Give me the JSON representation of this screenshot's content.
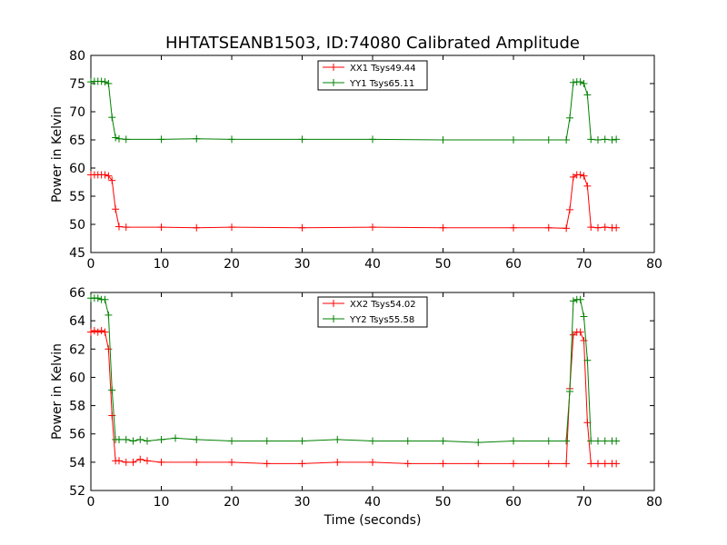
{
  "chart_data": {
    "title": "HHTATSEANB1503, ID:74080 Calibrated Amplitude",
    "xlabel": "Time (seconds)",
    "panels": [
      {
        "type": "line",
        "ylabel": "Power in Kelvin",
        "xlim": [
          0,
          80
        ],
        "ylim": [
          45,
          80
        ],
        "xticks": [
          0,
          10,
          20,
          30,
          40,
          50,
          60,
          70,
          80
        ],
        "yticks": [
          45,
          50,
          55,
          60,
          65,
          70,
          75,
          80
        ],
        "grid": false,
        "legend_position": "top-center",
        "series": [
          {
            "name": "XX1 Tsys49.44",
            "color": "#ff0000",
            "x": [
              0.0,
              0.5,
              1.0,
              1.5,
              2.0,
              2.5,
              3.0,
              3.5,
              4.0,
              5.0,
              10.0,
              15.0,
              20.0,
              30.0,
              40.0,
              50.0,
              60.0,
              65.0,
              67.5,
              68.0,
              68.5,
              69.0,
              69.5,
              70.0,
              70.5,
              71.0,
              72.0,
              73.0,
              74.0,
              74.6
            ],
            "y": [
              58.8,
              58.8,
              58.8,
              58.8,
              58.8,
              58.6,
              57.8,
              52.7,
              49.6,
              49.5,
              49.5,
              49.4,
              49.5,
              49.4,
              49.5,
              49.4,
              49.4,
              49.4,
              49.3,
              52.6,
              58.4,
              58.8,
              58.8,
              58.6,
              56.8,
              49.5,
              49.4,
              49.5,
              49.4,
              49.4
            ]
          },
          {
            "name": "YY1 Tsys65.11",
            "color": "#008000",
            "x": [
              0.0,
              0.5,
              1.0,
              1.5,
              2.0,
              2.5,
              3.0,
              3.5,
              4.0,
              5.0,
              10.0,
              15.0,
              20.0,
              30.0,
              40.0,
              50.0,
              60.0,
              65.0,
              67.5,
              68.0,
              68.5,
              69.0,
              69.5,
              70.0,
              70.5,
              71.0,
              72.0,
              73.0,
              74.0,
              74.6
            ],
            "y": [
              75.3,
              75.4,
              75.4,
              75.4,
              75.3,
              75.0,
              69.0,
              65.4,
              65.2,
              65.1,
              65.1,
              65.2,
              65.1,
              65.1,
              65.1,
              65.0,
              65.0,
              65.0,
              65.0,
              68.9,
              75.2,
              75.3,
              75.3,
              75.0,
              73.0,
              65.1,
              65.0,
              65.1,
              65.0,
              65.1
            ]
          }
        ]
      },
      {
        "type": "line",
        "ylabel": "Power in Kelvin",
        "xlim": [
          0,
          80
        ],
        "ylim": [
          52,
          66
        ],
        "xticks": [
          0,
          10,
          20,
          30,
          40,
          50,
          60,
          70,
          80
        ],
        "yticks": [
          52,
          54,
          56,
          58,
          60,
          62,
          64,
          66
        ],
        "grid": false,
        "legend_position": "top-center",
        "series": [
          {
            "name": "XX2 Tsys54.02",
            "color": "#ff0000",
            "x": [
              0.0,
              0.5,
              1.0,
              1.5,
              2.0,
              2.5,
              3.0,
              3.5,
              4.0,
              5.0,
              6.0,
              7.0,
              8.0,
              10.0,
              15.0,
              20.0,
              25.0,
              30.0,
              35.0,
              40.0,
              45.0,
              50.0,
              55.0,
              60.0,
              65.0,
              67.5,
              68.0,
              68.5,
              69.0,
              69.5,
              70.0,
              70.5,
              71.0,
              72.0,
              73.0,
              74.0,
              74.6
            ],
            "y": [
              63.2,
              63.3,
              63.2,
              63.3,
              63.2,
              62.0,
              57.3,
              54.1,
              54.1,
              54.0,
              54.0,
              54.2,
              54.1,
              54.0,
              54.0,
              54.0,
              53.9,
              53.9,
              54.0,
              54.0,
              53.9,
              53.9,
              53.9,
              53.9,
              53.9,
              53.9,
              59.2,
              63.0,
              63.2,
              63.2,
              62.6,
              56.8,
              53.9,
              53.9,
              53.9,
              53.9,
              53.9
            ]
          },
          {
            "name": "YY2 Tsys55.58",
            "color": "#008000",
            "x": [
              0.0,
              0.5,
              1.0,
              1.5,
              2.0,
              2.5,
              3.0,
              3.5,
              4.0,
              5.0,
              6.0,
              7.0,
              8.0,
              10.0,
              12.0,
              15.0,
              20.0,
              25.0,
              30.0,
              35.0,
              40.0,
              45.0,
              50.0,
              55.0,
              60.0,
              65.0,
              67.5,
              68.0,
              68.5,
              69.0,
              69.5,
              70.0,
              70.5,
              71.0,
              72.0,
              73.0,
              74.0,
              74.6
            ],
            "y": [
              65.6,
              65.6,
              65.6,
              65.5,
              65.5,
              64.4,
              59.1,
              55.6,
              55.6,
              55.6,
              55.5,
              55.6,
              55.5,
              55.6,
              55.7,
              55.6,
              55.5,
              55.5,
              55.5,
              55.6,
              55.5,
              55.5,
              55.5,
              55.4,
              55.5,
              55.5,
              55.5,
              59.0,
              65.4,
              65.5,
              65.5,
              64.3,
              61.2,
              55.5,
              55.5,
              55.5,
              55.5,
              55.5
            ]
          }
        ]
      }
    ]
  }
}
